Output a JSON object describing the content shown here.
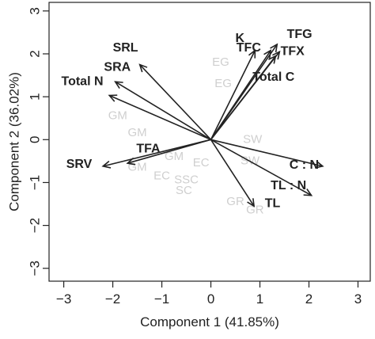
{
  "chart_data": {
    "type": "biplot",
    "title": "",
    "xlabel": "Component 1 (41.85%)",
    "ylabel": "Component 2 (36.02%)",
    "xlim": [
      -3.3,
      3.25
    ],
    "ylim": [
      -3.3,
      3.2
    ],
    "xticks": [
      -3,
      -2,
      -1,
      0,
      1,
      2,
      3
    ],
    "yticks": [
      -3,
      -2,
      -1,
      0,
      1,
      2,
      3
    ],
    "xtick_labels": [
      "−3",
      "−2",
      "−1",
      "0",
      "1",
      "2",
      "3"
    ],
    "ytick_labels": [
      "−3",
      "−2",
      "−1",
      "0",
      "1",
      "2",
      "3"
    ],
    "grid": false,
    "loadings": [
      {
        "name": "SRL",
        "x": -1.45,
        "y": 1.75,
        "label_x": -2.0,
        "label_y": 2.13
      },
      {
        "name": "SRA",
        "x": -1.95,
        "y": 1.35,
        "label_x": -2.18,
        "label_y": 1.68
      },
      {
        "name": "Total N",
        "x": -2.07,
        "y": 1.03,
        "label_x": -3.05,
        "label_y": 1.35
      },
      {
        "name": "SRV",
        "x": -2.2,
        "y": -0.62,
        "label_x": -2.95,
        "label_y": -0.58
      },
      {
        "name": "TFA",
        "x": -1.7,
        "y": -0.55,
        "label_x": -1.52,
        "label_y": -0.22
      },
      {
        "name": "K",
        "x": 0.9,
        "y": 2.08,
        "label_x": 0.5,
        "label_y": 2.35
      },
      {
        "name": "TFC",
        "x": 1.22,
        "y": 2.08,
        "label_x": 0.52,
        "label_y": 2.13
      },
      {
        "name": "TFG",
        "x": 1.35,
        "y": 2.22,
        "label_x": 1.55,
        "label_y": 2.45
      },
      {
        "name": "TFX",
        "x": 1.4,
        "y": 2.05,
        "label_x": 1.42,
        "label_y": 2.05
      },
      {
        "name": "Total C",
        "x": 1.32,
        "y": 1.95,
        "label_x": 0.85,
        "label_y": 1.45
      },
      {
        "name": "C : N",
        "x": 2.28,
        "y": -0.62,
        "label_x": 1.6,
        "label_y": -0.6
      },
      {
        "name": "TL : N",
        "x": 2.05,
        "y": -1.3,
        "label_x": 1.22,
        "label_y": -1.08
      },
      {
        "name": "TL",
        "x": 0.88,
        "y": -1.55,
        "label_x": 1.1,
        "label_y": -1.5
      }
    ],
    "observations": [
      {
        "label": "EG",
        "x": 0.2,
        "y": 1.8
      },
      {
        "label": "EG",
        "x": 0.25,
        "y": 1.3
      },
      {
        "label": "GM",
        "x": -1.9,
        "y": 0.55
      },
      {
        "label": "GM",
        "x": -1.5,
        "y": 0.15
      },
      {
        "label": "GM",
        "x": -1.5,
        "y": -0.65
      },
      {
        "label": "GM",
        "x": -0.75,
        "y": -0.4
      },
      {
        "label": "EC",
        "x": -1.0,
        "y": -0.85
      },
      {
        "label": "EC",
        "x": -0.2,
        "y": -0.55
      },
      {
        "label": "SSC",
        "x": -0.5,
        "y": -0.95
      },
      {
        "label": "SC",
        "x": -0.55,
        "y": -1.2
      },
      {
        "label": "SW",
        "x": 0.85,
        "y": 0.0
      },
      {
        "label": "SW",
        "x": 0.8,
        "y": -0.5
      },
      {
        "label": "GR",
        "x": 0.5,
        "y": -1.45
      },
      {
        "label": "GR",
        "x": 0.9,
        "y": -1.65
      }
    ]
  }
}
